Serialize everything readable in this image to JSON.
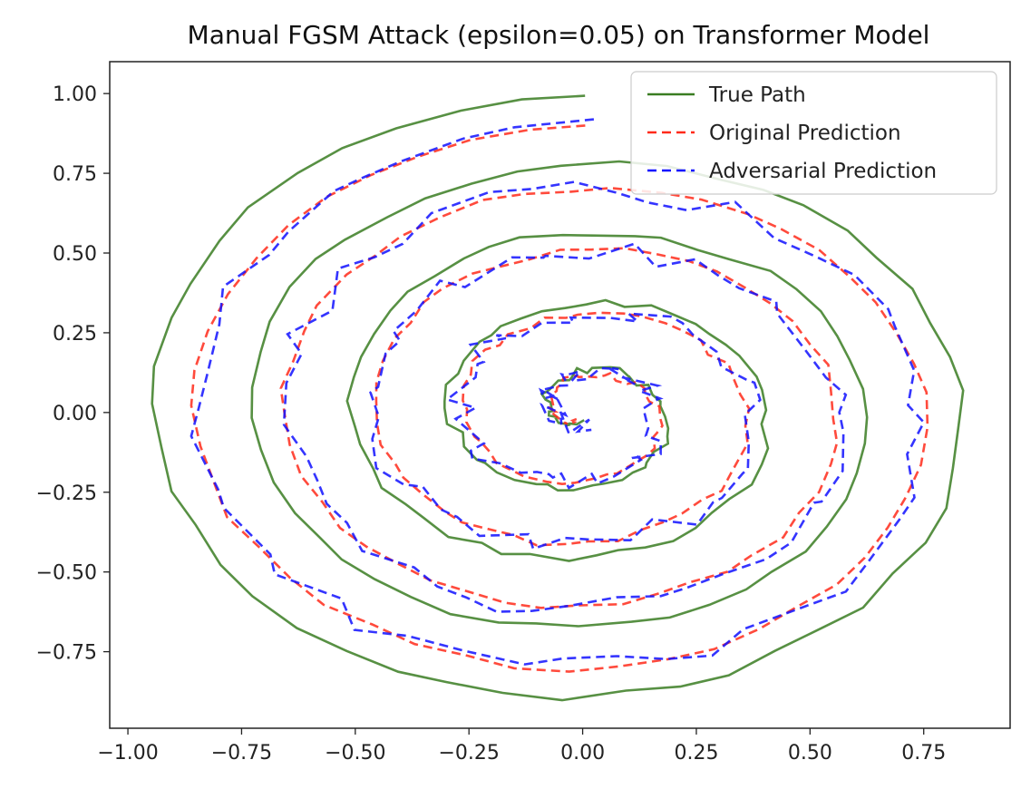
{
  "chart_data": {
    "type": "line",
    "title": "Manual FGSM Attack (epsilon=0.05) on Transformer Model",
    "xlabel": "",
    "ylabel": "",
    "xlim": [
      -1.04,
      0.94
    ],
    "ylim": [
      -0.99,
      1.1
    ],
    "grid": false,
    "legend_position": "top-right",
    "x_ticks": [
      -1.0,
      -0.75,
      -0.5,
      -0.25,
      0.0,
      0.25,
      0.5,
      0.75
    ],
    "x_tick_labels": [
      "−1.00",
      "−0.75",
      "−0.50",
      "−0.25",
      "0.00",
      "0.25",
      "0.50",
      "0.75"
    ],
    "y_ticks": [
      1.0,
      0.75,
      0.5,
      0.25,
      0.0,
      -0.25,
      -0.5,
      -0.75
    ],
    "y_tick_labels": [
      "1.00",
      "0.75",
      "0.50",
      "0.25",
      "0.00",
      "−0.25",
      "−0.50",
      "−0.75"
    ],
    "spiral": {
      "t_max": 28.0,
      "points": 200,
      "x": "r(t) * cos(t)",
      "y": "r(t) * sin(t)",
      "r": "1 - t / (t_max + 1)",
      "t_start": 1.5707963
    },
    "series": [
      {
        "name": "True Path",
        "color": "#3a7d22",
        "dash": "solid",
        "noise": 0.012,
        "radius_scale": 1.0,
        "x_shift": 0.0
      },
      {
        "name": "Original Prediction",
        "color": "#ff2a1a",
        "dash": "dashed",
        "noise": 0.01,
        "radius_scale": 0.9,
        "x_shift": 0.0
      },
      {
        "name": "Adversarial Prediction",
        "color": "#1010ff",
        "dash": "dashed",
        "noise": 0.035,
        "radius_scale": 0.9,
        "x_shift": 0.0
      }
    ]
  }
}
